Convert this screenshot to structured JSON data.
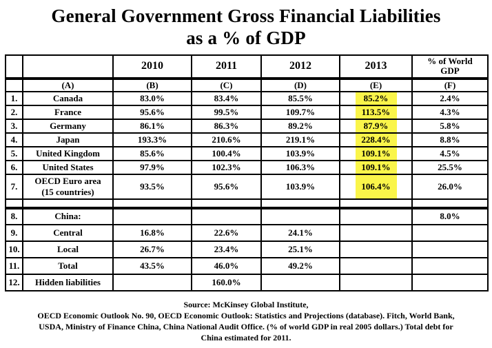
{
  "title": {
    "line1": "General Government Gross Financial Liabilities",
    "line2": "as a % of GDP"
  },
  "header": {
    "world_gdp_line1": "% of World",
    "world_gdp_line2": "GDP"
  },
  "chart_data": {
    "type": "table",
    "title": "General Government Gross Financial Liabilities as a % of GDP",
    "column_groups": [
      "",
      "",
      "2010",
      "2011",
      "2012",
      "2013",
      "% of World GDP"
    ],
    "column_letters": [
      "",
      "(A)",
      "(B)",
      "(C)",
      "(D)",
      "(E)",
      "(F)"
    ],
    "highlight_note": "2013 column (E) values for rows 1-7 are marked with a yellow highlighter band",
    "rows": [
      {
        "num": "1.",
        "label": "Canada",
        "values": [
          "83.0%",
          "83.4%",
          "85.5%",
          "85.2%",
          "2.4%"
        ],
        "highlight_2013": true
      },
      {
        "num": "2.",
        "label": "France",
        "values": [
          "95.6%",
          "99.5%",
          "109.7%",
          "113.5%",
          "4.3%"
        ],
        "highlight_2013": true
      },
      {
        "num": "3.",
        "label": "Germany",
        "values": [
          "86.1%",
          "86.3%",
          "89.2%",
          "87.9%",
          "5.8%"
        ],
        "highlight_2013": true
      },
      {
        "num": "4.",
        "label": "Japan",
        "values": [
          "193.3%",
          "210.6%",
          "219.1%",
          "228.4%",
          "8.8%"
        ],
        "highlight_2013": true
      },
      {
        "num": "5.",
        "label": "United Kingdom",
        "values": [
          "85.6%",
          "100.4%",
          "103.9%",
          "109.1%",
          "4.5%"
        ],
        "highlight_2013": true
      },
      {
        "num": "6.",
        "label": "United States",
        "values": [
          "97.9%",
          "102.3%",
          "106.3%",
          "109.1%",
          "25.5%"
        ],
        "highlight_2013": true
      },
      {
        "num": "7.",
        "label": "OECD Euro area",
        "label_line2": "(15 countries)",
        "values": [
          "93.5%",
          "95.6%",
          "103.9%",
          "106.4%",
          "26.0%"
        ],
        "highlight_2013": true,
        "tall": true
      },
      {
        "spacer": true,
        "num": "",
        "label": "",
        "values": [
          "",
          "",
          "",
          "",
          ""
        ]
      },
      {
        "num": "8.",
        "label": "China:",
        "values": [
          "",
          "",
          "",
          "",
          "8.0%"
        ],
        "thick_top": true,
        "lower": true
      },
      {
        "num": "9.",
        "label": "Central",
        "values": [
          "16.8%",
          "22.6%",
          "24.1%",
          "",
          ""
        ],
        "lower": true
      },
      {
        "num": "10.",
        "label": "Local",
        "values": [
          "26.7%",
          "23.4%",
          "25.1%",
          "",
          ""
        ],
        "lower": true
      },
      {
        "num": "11.",
        "label": "Total",
        "values": [
          "43.5%",
          "46.0%",
          "49.2%",
          "",
          ""
        ],
        "lower": true
      },
      {
        "num": "12.",
        "label": "Hidden liabilities",
        "values": [
          "",
          "160.0%",
          "",
          "",
          ""
        ],
        "lower": true
      }
    ]
  },
  "footer": {
    "lines": [
      "Source: McKinsey Global Institute,",
      "OECD Economic Outlook No. 90, OECD Economic Outlook: Statistics and Projections (database). Fitch, World Bank,",
      "USDA, Ministry of Finance China, China National Audit Office. (% of world GDP in real 2005 dollars.) Total debt for",
      "China estimated for 2011."
    ]
  },
  "colors": {
    "highlight": "#FAF54A",
    "border": "#000000",
    "text": "#000000",
    "background": "#FFFFFF"
  }
}
